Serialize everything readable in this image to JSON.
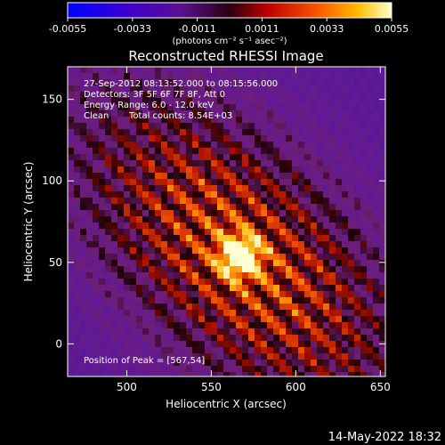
{
  "colorbar": {
    "ticks": [
      "-0.0055",
      "-0.0033",
      "-0.0011",
      "0.0011",
      "0.0033",
      "0.0055"
    ],
    "unit_label": "(photons cm⁻² s⁻¹ asec⁻²)",
    "range": [
      -0.0055,
      0.0055
    ]
  },
  "chart_data": {
    "type": "heatmap",
    "title": "Reconstructed RHESSI Image",
    "xlabel": "Heliocentric X (arcsec)",
    "ylabel": "Heliocentric Y (arcsec)",
    "xlim": [
      465,
      653
    ],
    "ylim": [
      -20,
      170
    ],
    "x_ticks": [
      "500",
      "550",
      "600",
      "650"
    ],
    "x_tick_values": [
      500,
      550,
      600,
      650
    ],
    "y_ticks": [
      "0",
      "50",
      "100",
      "150"
    ],
    "y_tick_values": [
      0,
      50,
      100,
      150
    ],
    "peak": [
      567,
      54
    ],
    "annotations": {
      "time_range": "27-Sep-2012 08:13:52.000 to 08:15:56.000",
      "detectors": "Detectors: 3F 5F 6F 7F 8F, Att 0",
      "energy": "Energy Range: 6.0 - 12.0 keV",
      "clean": "Clean",
      "counts": "Total counts: 8.54E+03",
      "peak_label": "Position of Peak = [567,54]"
    }
  },
  "footer": {
    "date": "14-May-2022 18:32"
  }
}
